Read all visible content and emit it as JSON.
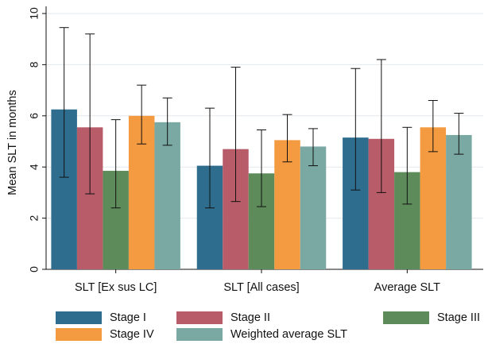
{
  "chart_data": {
    "type": "bar",
    "title": "",
    "xlabel": "",
    "ylabel": "Mean SLT in months",
    "ylim": [
      0,
      10
    ],
    "yticks": [
      0,
      2,
      4,
      6,
      8,
      10
    ],
    "grid": true,
    "legend_position": "bottom",
    "categories": [
      "SLT [Ex sus LC]",
      "SLT [All cases]",
      "Average SLT"
    ],
    "series": [
      {
        "name": "Stage I",
        "color": "#2e6d8e",
        "values": [
          6.25,
          4.05,
          5.15
        ],
        "err_low": [
          3.6,
          2.4,
          3.1
        ],
        "err_high": [
          9.45,
          6.3,
          7.85
        ]
      },
      {
        "name": "Stage II",
        "color": "#b85c6a",
        "values": [
          5.55,
          4.7,
          5.1
        ],
        "err_low": [
          2.95,
          2.65,
          3.0
        ],
        "err_high": [
          9.2,
          7.9,
          8.2
        ]
      },
      {
        "name": "Stage III",
        "color": "#5d8c5a",
        "values": [
          3.85,
          3.75,
          3.8
        ],
        "err_low": [
          2.4,
          2.45,
          2.55
        ],
        "err_high": [
          5.85,
          5.45,
          5.55
        ]
      },
      {
        "name": "Stage IV",
        "color": "#f49a40",
        "values": [
          6.0,
          5.05,
          5.55
        ],
        "err_low": [
          4.9,
          4.2,
          4.6
        ],
        "err_high": [
          7.2,
          6.05,
          6.6
        ]
      },
      {
        "name": "Weighted average SLT",
        "color": "#7aa8a2",
        "values": [
          5.75,
          4.8,
          5.25
        ],
        "err_low": [
          4.85,
          4.05,
          4.5
        ],
        "err_high": [
          6.7,
          5.5,
          6.1
        ]
      }
    ]
  }
}
